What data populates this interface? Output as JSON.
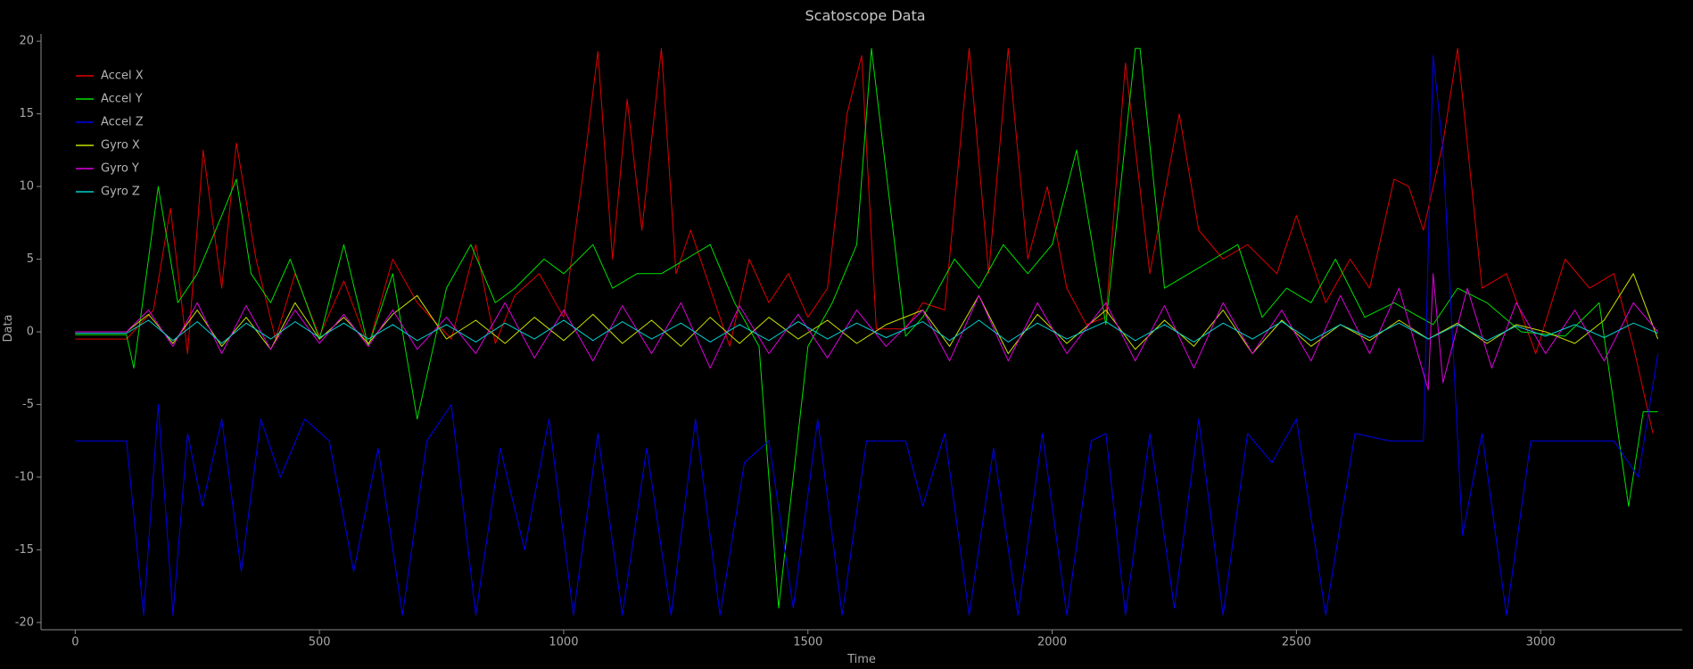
{
  "chart_data": {
    "type": "line",
    "title": "Scatoscope Data",
    "xlabel": "Time",
    "ylabel": "Data",
    "xlim": [
      -70,
      3290
    ],
    "ylim": [
      -20.5,
      20.5
    ],
    "x_ticks": [
      0,
      500,
      1000,
      1500,
      2000,
      2500,
      3000
    ],
    "x_tick_labels": [
      "0",
      "500",
      "1000",
      "1500",
      "2000",
      "2500",
      "3000"
    ],
    "y_ticks": [
      20,
      15,
      10,
      5,
      0,
      -5,
      -10,
      -15,
      -20
    ],
    "y_tick_labels": [
      "20",
      "15",
      "10",
      "5",
      "0",
      "-5",
      "-10",
      "-15",
      "-20"
    ],
    "grid": false,
    "legend_position": "top-left",
    "colors": {
      "background": "#000000",
      "axis": "#8a8a8a",
      "text": "#b4b4b4"
    },
    "series": [
      {
        "name": "Accel X",
        "color": "#e00000",
        "x": [
          0,
          105,
          160,
          195,
          230,
          262,
          300,
          330,
          370,
          410,
          450,
          500,
          550,
          600,
          650,
          700,
          770,
          820,
          860,
          900,
          950,
          1000,
          1040,
          1070,
          1100,
          1130,
          1160,
          1200,
          1230,
          1260,
          1300,
          1340,
          1380,
          1420,
          1460,
          1500,
          1540,
          1580,
          1610,
          1640,
          1700,
          1735,
          1780,
          1830,
          1870,
          1910,
          1950,
          1990,
          2030,
          2070,
          2110,
          2150,
          2200,
          2260,
          2300,
          2350,
          2400,
          2460,
          2500,
          2560,
          2610,
          2650,
          2700,
          2730,
          2760,
          2800,
          2830,
          2880,
          2930,
          2990,
          3050,
          3100,
          3150,
          3190,
          3230
        ],
        "y": [
          -0.5,
          -0.5,
          1.5,
          8.5,
          -1.5,
          12.5,
          3.0,
          13.0,
          5.0,
          -0.5,
          4.0,
          -0.3,
          3.5,
          -1.0,
          5.0,
          2.0,
          -0.5,
          6.0,
          -0.8,
          2.5,
          4.0,
          1.0,
          11.0,
          19.3,
          5.0,
          16.0,
          7.0,
          19.5,
          4.0,
          7.0,
          3.0,
          -1.0,
          5.0,
          2.0,
          4.0,
          1.0,
          3.0,
          15.0,
          19.0,
          0.2,
          0.2,
          2.0,
          1.5,
          19.5,
          4.0,
          19.5,
          5.0,
          10.0,
          3.0,
          0.5,
          1.0,
          18.5,
          4.0,
          15.0,
          7.0,
          5.0,
          6.0,
          4.0,
          8.0,
          2.0,
          5.0,
          3.0,
          10.5,
          10.0,
          7.0,
          13.0,
          19.5,
          3.0,
          4.0,
          -1.5,
          5.0,
          3.0,
          4.0,
          -1.0,
          -7.0
        ]
      },
      {
        "name": "Accel Y",
        "color": "#00e000",
        "x": [
          0,
          105,
          120,
          170,
          210,
          250,
          300,
          330,
          360,
          400,
          440,
          500,
          550,
          600,
          650,
          700,
          760,
          810,
          860,
          900,
          960,
          1000,
          1060,
          1100,
          1150,
          1200,
          1250,
          1300,
          1350,
          1400,
          1440,
          1500,
          1550,
          1600,
          1630,
          1700,
          1735,
          1800,
          1850,
          1900,
          1950,
          2000,
          2050,
          2110,
          2170,
          2180,
          2230,
          2280,
          2330,
          2380,
          2430,
          2480,
          2530,
          2580,
          2640,
          2700,
          2780,
          2830,
          2890,
          2960,
          3050,
          3120,
          3180,
          3210,
          3240
        ],
        "y": [
          -0.2,
          -0.2,
          -2.5,
          10.0,
          2.0,
          4.0,
          8.0,
          10.5,
          4.0,
          2.0,
          5.0,
          -0.5,
          6.0,
          -1.0,
          4.0,
          -6.0,
          3.0,
          6.0,
          2.0,
          3.0,
          5.0,
          4.0,
          6.0,
          3.0,
          4.0,
          4.0,
          5.0,
          6.0,
          2.0,
          -1.0,
          -19.0,
          -1.0,
          2.0,
          6.0,
          19.5,
          -0.3,
          1.0,
          5.0,
          3.0,
          6.0,
          4.0,
          6.0,
          12.5,
          0.5,
          19.5,
          19.5,
          3.0,
          4.0,
          5.0,
          6.0,
          1.0,
          3.0,
          2.0,
          5.0,
          1.0,
          2.0,
          0.5,
          3.0,
          2.0,
          0.0,
          -0.3,
          2.0,
          -12.0,
          -5.5,
          -5.5
        ]
      },
      {
        "name": "Accel Z",
        "color": "#0000f0",
        "x": [
          0,
          105,
          140,
          170,
          200,
          230,
          260,
          300,
          340,
          380,
          420,
          470,
          520,
          570,
          620,
          670,
          720,
          770,
          820,
          870,
          920,
          970,
          1020,
          1070,
          1120,
          1170,
          1220,
          1270,
          1320,
          1370,
          1420,
          1470,
          1520,
          1570,
          1620,
          1700,
          1735,
          1780,
          1830,
          1880,
          1930,
          1980,
          2030,
          2080,
          2110,
          2150,
          2200,
          2250,
          2300,
          2350,
          2400,
          2450,
          2500,
          2560,
          2620,
          2690,
          2760,
          2780,
          2800,
          2840,
          2880,
          2930,
          2980,
          3040,
          3100,
          3150,
          3200,
          3240
        ],
        "y": [
          -7.5,
          -7.5,
          -19.5,
          -5.0,
          -19.5,
          -7.0,
          -12.0,
          -6.0,
          -16.5,
          -6.0,
          -10.0,
          -6.0,
          -7.5,
          -16.5,
          -8.0,
          -19.5,
          -7.5,
          -5.0,
          -19.5,
          -8.0,
          -15.0,
          -6.0,
          -19.5,
          -7.0,
          -19.5,
          -8.0,
          -19.5,
          -6.0,
          -19.5,
          -9.0,
          -7.5,
          -19.0,
          -6.0,
          -19.5,
          -7.5,
          -7.5,
          -12.0,
          -7.0,
          -19.5,
          -8.0,
          -19.5,
          -7.0,
          -19.5,
          -7.5,
          -7.0,
          -19.5,
          -7.0,
          -19.0,
          -6.0,
          -19.5,
          -7.0,
          -9.0,
          -6.0,
          -19.5,
          -7.0,
          -7.5,
          -7.5,
          19.0,
          12.5,
          -14.0,
          -7.0,
          -19.5,
          -7.5,
          -7.5,
          -7.5,
          -7.5,
          -10.0,
          -1.5
        ]
      },
      {
        "name": "Gyro X",
        "color": "#c8e000",
        "x": [
          0,
          105,
          150,
          200,
          250,
          300,
          350,
          400,
          450,
          500,
          550,
          600,
          650,
          700,
          760,
          820,
          880,
          940,
          1000,
          1060,
          1120,
          1180,
          1240,
          1300,
          1360,
          1420,
          1480,
          1540,
          1600,
          1660,
          1735,
          1790,
          1850,
          1910,
          1970,
          2030,
          2110,
          2170,
          2230,
          2290,
          2350,
          2410,
          2470,
          2530,
          2590,
          2650,
          2710,
          2770,
          2830,
          2890,
          2950,
          3010,
          3070,
          3130,
          3190,
          3240
        ],
        "y": [
          0.0,
          0.0,
          1.2,
          -0.8,
          1.5,
          -1.0,
          1.0,
          -1.2,
          2.0,
          -0.5,
          1.0,
          -0.8,
          1.2,
          2.5,
          -0.5,
          0.8,
          -0.8,
          1.0,
          -0.6,
          1.2,
          -0.8,
          0.8,
          -1.0,
          1.0,
          -0.8,
          1.0,
          -0.5,
          0.8,
          -0.8,
          0.5,
          1.5,
          -1.0,
          2.5,
          -1.5,
          1.2,
          -0.8,
          1.5,
          -1.2,
          0.8,
          -1.0,
          1.5,
          -1.5,
          0.8,
          -1.0,
          0.5,
          -0.6,
          0.8,
          -0.5,
          0.6,
          -0.8,
          0.5,
          0.0,
          -0.8,
          0.8,
          4.0,
          -0.5
        ]
      },
      {
        "name": "Gyro Y",
        "color": "#e000e0",
        "x": [
          0,
          105,
          150,
          200,
          250,
          300,
          350,
          400,
          450,
          500,
          550,
          600,
          650,
          700,
          760,
          820,
          880,
          940,
          1000,
          1060,
          1120,
          1180,
          1240,
          1300,
          1360,
          1420,
          1480,
          1540,
          1600,
          1660,
          1735,
          1790,
          1850,
          1910,
          1970,
          2030,
          2110,
          2170,
          2230,
          2290,
          2350,
          2410,
          2470,
          2530,
          2590,
          2650,
          2710,
          2770,
          2780,
          2800,
          2850,
          2900,
          2950,
          3010,
          3070,
          3130,
          3190,
          3240
        ],
        "y": [
          0.0,
          0.0,
          1.5,
          -1.0,
          2.0,
          -1.5,
          1.8,
          -1.2,
          1.5,
          -0.8,
          1.2,
          -1.0,
          1.5,
          -1.2,
          1.0,
          -1.5,
          2.0,
          -1.8,
          1.5,
          -2.0,
          1.8,
          -1.5,
          2.0,
          -2.5,
          1.8,
          -1.5,
          1.2,
          -1.8,
          1.5,
          -1.0,
          1.5,
          -2.0,
          2.5,
          -2.0,
          2.0,
          -1.5,
          2.0,
          -2.0,
          1.8,
          -2.5,
          2.0,
          -1.5,
          1.5,
          -2.0,
          2.5,
          -1.5,
          3.0,
          -4.0,
          4.0,
          -3.5,
          3.0,
          -2.5,
          2.0,
          -1.5,
          1.5,
          -2.0,
          2.0,
          0.0
        ]
      },
      {
        "name": "Gyro Z",
        "color": "#00d0d0",
        "x": [
          0,
          105,
          150,
          200,
          250,
          300,
          350,
          400,
          450,
          500,
          550,
          600,
          650,
          700,
          760,
          820,
          880,
          940,
          1000,
          1060,
          1120,
          1180,
          1240,
          1300,
          1360,
          1420,
          1480,
          1540,
          1600,
          1660,
          1735,
          1790,
          1850,
          1910,
          1970,
          2030,
          2110,
          2170,
          2230,
          2290,
          2350,
          2410,
          2470,
          2530,
          2590,
          2650,
          2710,
          2770,
          2830,
          2890,
          2950,
          3010,
          3070,
          3130,
          3190,
          3240
        ],
        "y": [
          -0.1,
          -0.1,
          0.8,
          -0.6,
          0.7,
          -0.8,
          0.6,
          -0.5,
          0.7,
          -0.4,
          0.6,
          -0.5,
          0.5,
          -0.6,
          0.5,
          -0.7,
          0.6,
          -0.5,
          0.8,
          -0.6,
          0.7,
          -0.5,
          0.6,
          -0.7,
          0.5,
          -0.6,
          0.7,
          -0.5,
          0.6,
          -0.4,
          0.7,
          -0.6,
          0.8,
          -0.7,
          0.6,
          -0.5,
          0.7,
          -0.6,
          0.5,
          -0.7,
          0.6,
          -0.5,
          0.7,
          -0.6,
          0.5,
          -0.4,
          0.6,
          -0.5,
          0.5,
          -0.6,
          0.4,
          -0.3,
          0.5,
          -0.4,
          0.6,
          -0.1
        ]
      }
    ]
  }
}
